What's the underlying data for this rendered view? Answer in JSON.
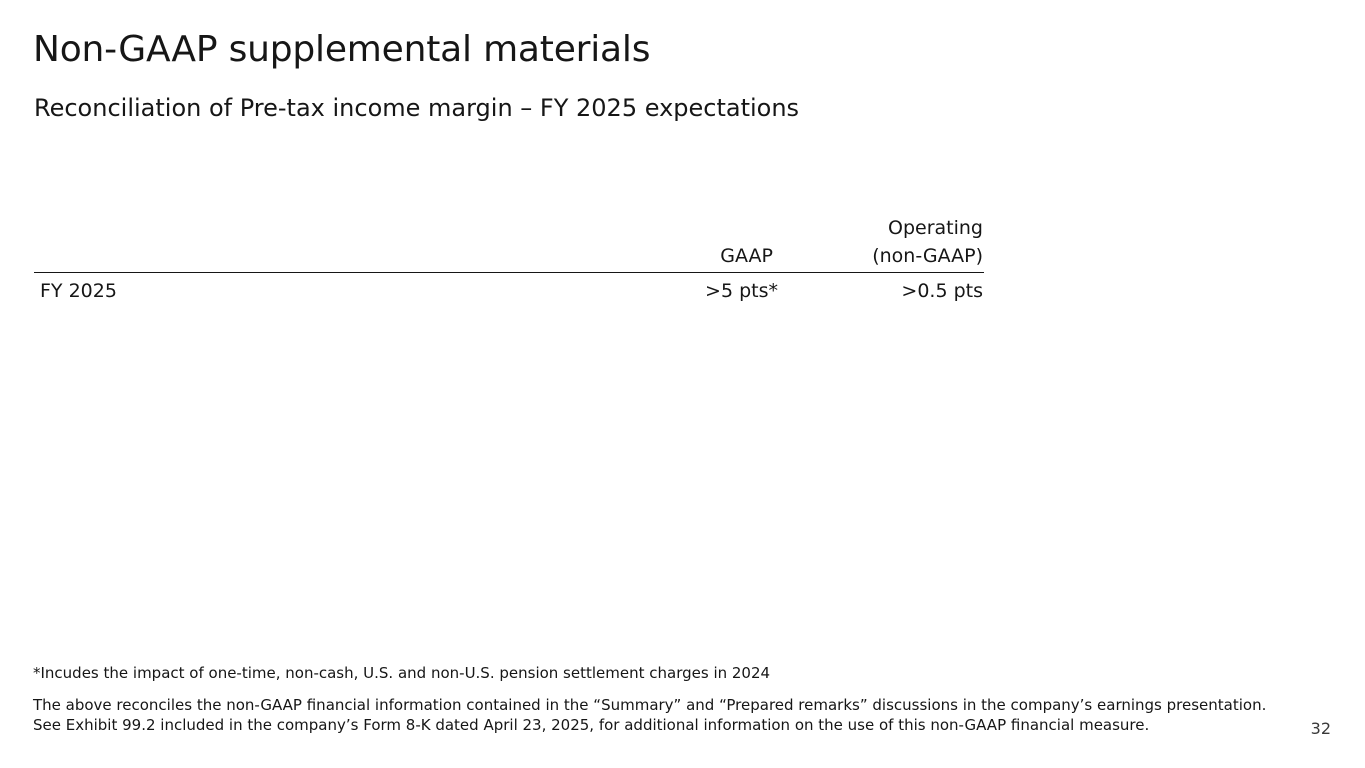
{
  "slide": {
    "title": "Non-GAAP supplemental materials",
    "subtitle": "Reconciliation of Pre-tax income margin – FY 2025 expectations",
    "page_number": "32"
  },
  "table": {
    "columns": {
      "gaap": "GAAP",
      "operating_line1": "Operating",
      "operating_line2": "(non-GAAP)"
    },
    "rows": [
      {
        "label": "FY 2025",
        "gaap": ">5 pts*",
        "operating": ">0.5 pts"
      }
    ]
  },
  "footnotes": {
    "asterisk": "*Incudes the impact of one-time, non-cash, U.S. and non-U.S. pension settlement charges in 2024",
    "disclaimer_line1": "The above reconciles the non-GAAP financial information contained in the “Summary” and “Prepared remarks” discussions in the company’s earnings presentation.",
    "disclaimer_line2": "See Exhibit 99.2 included in the company’s Form 8-K dated April 23, 2025, for additional information on the use of this non-GAAP financial measure."
  }
}
